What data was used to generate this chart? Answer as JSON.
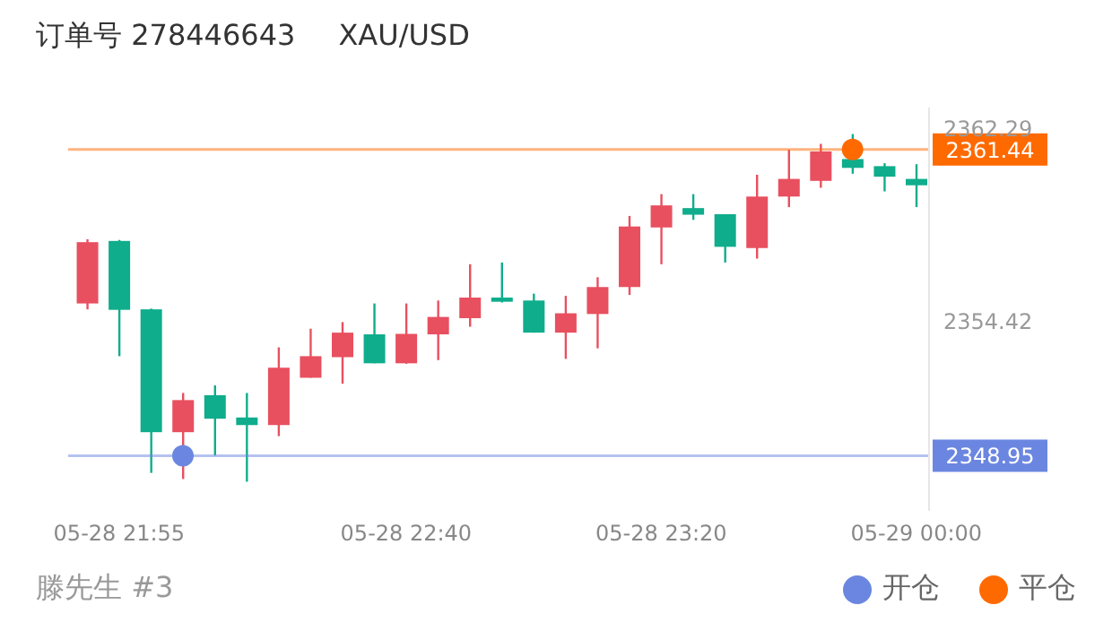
{
  "chart_data": {
    "type": "candlestick",
    "title": "订单号 278446643",
    "subtitle": "XAU/USD",
    "x": [
      "--05-28T21:50",
      "--05-28T21:55",
      "--05-28T22:00",
      "--05-28T22:05",
      "--05-28T22:10",
      "--05-28T22:15",
      "--05-28T22:20",
      "--05-28T22:25",
      "--05-28T22:30",
      "--05-28T22:35",
      "--05-28T22:40",
      "--05-28T22:45",
      "--05-28T22:50",
      "--05-28T22:55",
      "--05-28T23:00",
      "--05-28T23:05",
      "--05-28T23:10",
      "--05-28T23:15",
      "--05-28T23:20",
      "--05-28T23:25",
      "--05-28T23:30",
      "--05-28T23:35",
      "--05-28T23:40",
      "--05-28T23:45",
      "--05-28T23:50",
      "--05-28T23:55",
      "--05-29T00:00"
    ],
    "ohlc": [
      [
        2355.16,
        2357.78,
        2354.92,
        2357.66
      ],
      [
        2357.71,
        2357.75,
        2353.01,
        2354.9
      ],
      [
        2354.92,
        2354.95,
        2348.25,
        2349.91
      ],
      [
        2349.91,
        2351.51,
        2348.0,
        2351.22
      ],
      [
        2351.42,
        2351.82,
        2348.96,
        2350.46
      ],
      [
        2350.51,
        2351.51,
        2347.89,
        2350.2
      ],
      [
        2350.2,
        2353.37,
        2349.75,
        2352.54
      ],
      [
        2352.13,
        2354.13,
        2352.13,
        2353.01
      ],
      [
        2352.97,
        2354.4,
        2351.89,
        2353.97
      ],
      [
        2353.9,
        2355.16,
        2352.72,
        2352.72
      ],
      [
        2352.72,
        2355.16,
        2352.7,
        2353.92
      ],
      [
        2353.9,
        2355.28,
        2352.85,
        2354.61
      ],
      [
        2354.56,
        2356.76,
        2354.21,
        2355.4
      ],
      [
        2355.4,
        2356.83,
        2355.2,
        2355.23
      ],
      [
        2355.28,
        2355.56,
        2353.97,
        2353.97
      ],
      [
        2353.97,
        2355.47,
        2352.9,
        2354.76
      ],
      [
        2354.73,
        2356.23,
        2353.33,
        2355.83
      ],
      [
        2355.83,
        2358.73,
        2355.51,
        2358.3
      ],
      [
        2358.26,
        2359.62,
        2356.76,
        2359.16
      ],
      [
        2359.05,
        2359.62,
        2358.57,
        2358.78
      ],
      [
        2358.8,
        2358.8,
        2356.83,
        2357.47
      ],
      [
        2357.42,
        2360.41,
        2356.99,
        2359.52
      ],
      [
        2359.52,
        2361.43,
        2359.09,
        2360.24
      ],
      [
        2360.16,
        2361.67,
        2359.88,
        2361.36
      ],
      [
        2361.05,
        2362.07,
        2360.45,
        2360.69
      ],
      [
        2360.76,
        2360.88,
        2359.73,
        2360.33
      ],
      [
        2360.24,
        2360.84,
        2359.09,
        2359.98
      ]
    ],
    "colors": [
      "#e8505f",
      "#0fad8c",
      "#0fad8c",
      "#e8505f",
      "#0fad8c",
      "#0fad8c",
      "#e8505f",
      "#e8505f",
      "#e8505f",
      "#0fad8c",
      "#e8505f",
      "#e8505f",
      "#e8505f",
      "#0fad8c",
      "#0fad8c",
      "#e8505f",
      "#e8505f",
      "#e8505f",
      "#e8505f",
      "#0fad8c",
      "#0fad8c",
      "#e8505f",
      "#e8505f",
      "#e8505f",
      "#0fad8c",
      "#0fad8c",
      "#0fad8c"
    ],
    "series": [
      {
        "type": "scatter",
        "name": "开仓",
        "color": "#6b86e0",
        "x": [
          "--05-28T22:05"
        ],
        "values": [
          2348.95
        ]
      },
      {
        "type": "scatter",
        "name": "平仓",
        "color": "#ff6a00",
        "x": [
          "--05-28T23:50"
        ],
        "values": [
          2361.44
        ]
      }
    ],
    "xlim": [
      "--05-28T21:47",
      "--05-29T00:02"
    ],
    "xticks": [
      {
        "value": "--05-28T21:55",
        "label": "05-28 21:55"
      },
      {
        "value": "--05-28T22:40",
        "label": "05-28 22:40"
      },
      {
        "value": "--05-28T23:20",
        "label": "05-28 23:20"
      },
      {
        "value": "--05-29T00:00",
        "label": "05-29 00:00"
      }
    ],
    "ylim": [
      2346.7,
      2363.15
    ],
    "yticks": [
      2354.42,
      2362.29
    ],
    "ref_lines": [
      {
        "axis": "y",
        "value": 2361.44,
        "label": "2361.44",
        "color": "#ff6a00"
      },
      {
        "axis": "y",
        "value": 2348.95,
        "label": "2348.95",
        "color": "#6b86e0"
      }
    ],
    "legend": "bottom right",
    "marker": "circle",
    "annotations": [
      "滕先生 #3"
    ]
  }
}
